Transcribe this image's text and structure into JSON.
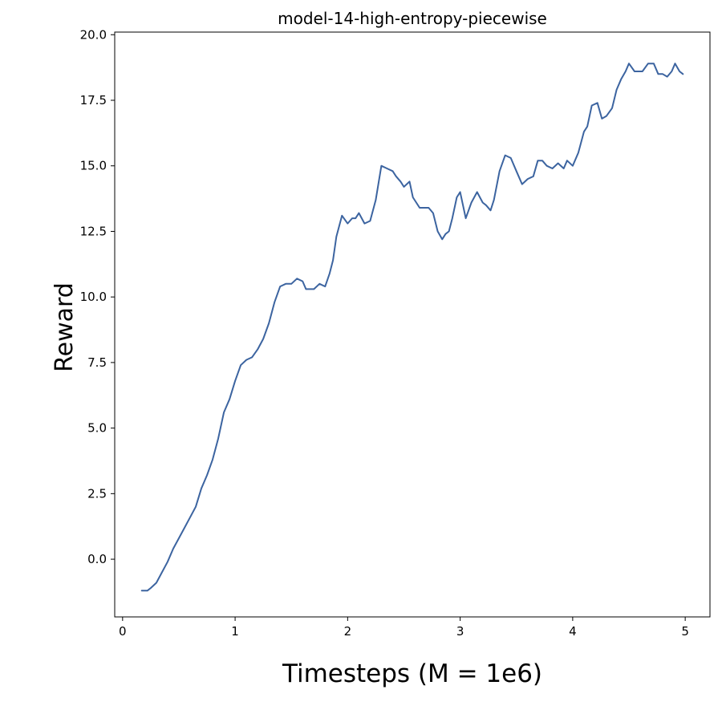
{
  "chart_data": {
    "type": "line",
    "title": "model-14-high-entropy-piecewise",
    "xlabel": "Timesteps (M = 1e6)",
    "ylabel": "Reward",
    "xlim": [
      -0.07,
      5.22
    ],
    "ylim": [
      -2.2,
      20.1
    ],
    "xticks": [
      0,
      1,
      2,
      3,
      4,
      5
    ],
    "yticks": [
      0.0,
      2.5,
      5.0,
      7.5,
      10.0,
      12.5,
      15.0,
      17.5,
      20.0
    ],
    "xtick_labels": [
      "0",
      "1",
      "2",
      "3",
      "4",
      "5"
    ],
    "ytick_labels": [
      "0.0",
      "2.5",
      "5.0",
      "7.5",
      "10.0",
      "12.5",
      "15.0",
      "17.5",
      "20.0"
    ],
    "grid": false,
    "line_color": "#3c64a0",
    "series": [
      {
        "x": [
          0.17,
          0.22,
          0.25,
          0.3,
          0.35,
          0.4,
          0.45,
          0.5,
          0.55,
          0.6,
          0.65,
          0.7,
          0.75,
          0.8,
          0.85,
          0.9,
          0.95,
          1.0,
          1.05,
          1.1,
          1.15,
          1.2,
          1.25,
          1.3,
          1.35,
          1.4,
          1.45,
          1.5,
          1.55,
          1.6,
          1.63,
          1.66,
          1.7,
          1.75,
          1.8,
          1.84,
          1.87,
          1.9,
          1.95,
          2.0,
          2.04,
          2.07,
          2.1,
          2.15,
          2.2,
          2.25,
          2.3,
          2.35,
          2.4,
          2.43,
          2.47,
          2.5,
          2.55,
          2.58,
          2.61,
          2.64,
          2.68,
          2.72,
          2.76,
          2.8,
          2.84,
          2.87,
          2.9,
          2.93,
          2.97,
          3.0,
          3.05,
          3.1,
          3.15,
          3.2,
          3.23,
          3.27,
          3.3,
          3.35,
          3.4,
          3.45,
          3.5,
          3.55,
          3.6,
          3.65,
          3.69,
          3.73,
          3.77,
          3.82,
          3.87,
          3.92,
          3.95,
          4.0,
          4.05,
          4.1,
          4.13,
          4.17,
          4.22,
          4.26,
          4.3,
          4.35,
          4.39,
          4.43,
          4.47,
          4.5,
          4.55,
          4.58,
          4.62,
          4.67,
          4.72,
          4.76,
          4.8,
          4.84,
          4.88,
          4.91,
          4.95,
          4.98
        ],
        "y": [
          -1.2,
          -1.2,
          -1.1,
          -0.9,
          -0.5,
          -0.1,
          0.4,
          0.8,
          1.2,
          1.6,
          2.0,
          2.7,
          3.2,
          3.8,
          4.6,
          5.6,
          6.1,
          6.8,
          7.4,
          7.6,
          7.7,
          8.0,
          8.4,
          9.0,
          9.8,
          10.4,
          10.5,
          10.5,
          10.7,
          10.6,
          10.3,
          10.3,
          10.3,
          10.5,
          10.4,
          10.9,
          11.4,
          12.3,
          13.1,
          12.8,
          13.0,
          13.0,
          13.2,
          12.8,
          12.9,
          13.7,
          15.0,
          14.9,
          14.8,
          14.6,
          14.4,
          14.2,
          14.4,
          13.8,
          13.6,
          13.4,
          13.4,
          13.4,
          13.2,
          12.5,
          12.2,
          12.4,
          12.5,
          13.0,
          13.8,
          14.0,
          13.0,
          13.6,
          14.0,
          13.6,
          13.5,
          13.3,
          13.7,
          14.8,
          15.4,
          15.3,
          14.8,
          14.3,
          14.5,
          14.6,
          15.2,
          15.2,
          15.0,
          14.9,
          15.1,
          14.9,
          15.2,
          15.0,
          15.5,
          16.3,
          16.5,
          17.3,
          17.4,
          16.8,
          16.9,
          17.2,
          17.9,
          18.3,
          18.6,
          18.9,
          18.6,
          18.6,
          18.6,
          18.9,
          18.9,
          18.5,
          18.5,
          18.4,
          18.6,
          18.9,
          18.6,
          18.5
        ]
      }
    ]
  }
}
